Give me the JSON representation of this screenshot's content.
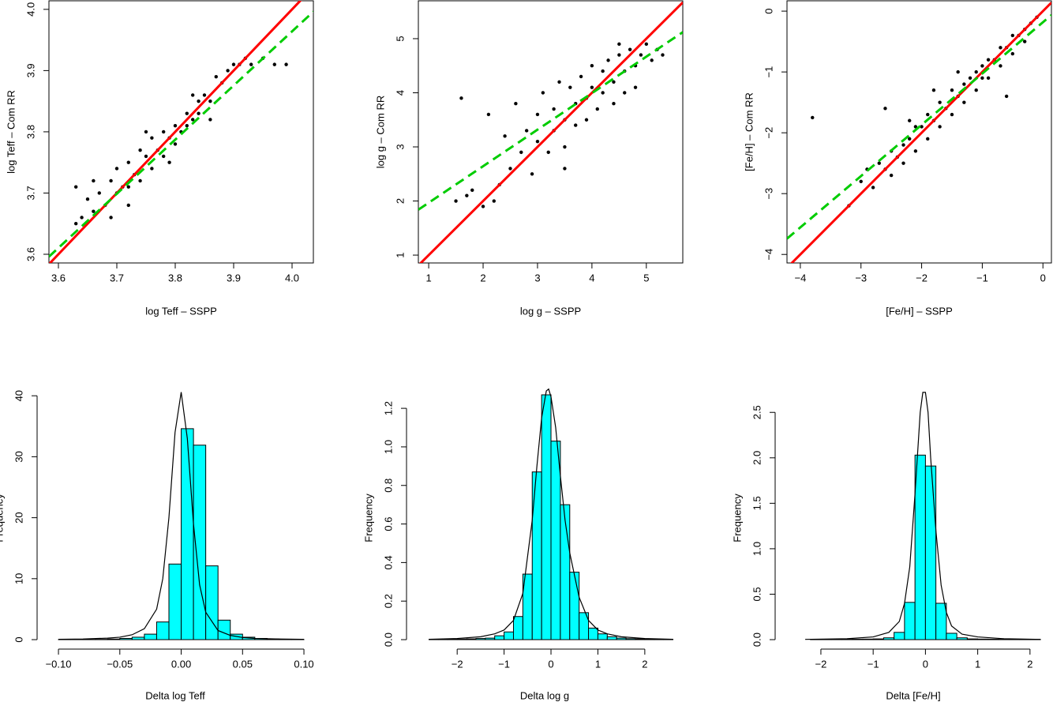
{
  "chart_data": [
    {
      "type": "scatter",
      "xlabel": "log Teff – SSPP",
      "ylabel": "log Teff – Com RR",
      "color": "#000000",
      "x": [
        3.63,
        3.64,
        3.65,
        3.66,
        3.67,
        3.68,
        3.69,
        3.7,
        3.7,
        3.71,
        3.72,
        3.72,
        3.73,
        3.74,
        3.74,
        3.75,
        3.76,
        3.76,
        3.77,
        3.78,
        3.78,
        3.79,
        3.8,
        3.8,
        3.81,
        3.82,
        3.82,
        3.83,
        3.84,
        3.84,
        3.85,
        3.86,
        3.87,
        3.88,
        3.89,
        3.9,
        3.91,
        3.92,
        3.93,
        3.95,
        3.97,
        3.99,
        3.66,
        3.69,
        3.72,
        3.75,
        3.79,
        3.83,
        3.86,
        3.63
      ],
      "values": [
        3.65,
        3.66,
        3.69,
        3.67,
        3.7,
        3.68,
        3.72,
        3.7,
        3.74,
        3.71,
        3.75,
        3.71,
        3.73,
        3.77,
        3.72,
        3.76,
        3.74,
        3.79,
        3.77,
        3.8,
        3.76,
        3.79,
        3.81,
        3.78,
        3.8,
        3.83,
        3.81,
        3.82,
        3.85,
        3.83,
        3.86,
        3.85,
        3.89,
        3.88,
        3.9,
        3.91,
        3.91,
        3.92,
        3.91,
        3.92,
        3.91,
        3.91,
        3.72,
        3.66,
        3.68,
        3.8,
        3.75,
        3.86,
        3.82,
        3.71
      ],
      "lines": [
        {
          "color": "#ff0000",
          "style": "solid",
          "slope": 1,
          "intercept": 0
        },
        {
          "color": "#00cc00",
          "style": "dashed",
          "slope": 0.884,
          "intercept": 0.428
        }
      ],
      "xlim": [
        3.5838,
        4.0365
      ],
      "ylim": [
        3.5858,
        4.014
      ],
      "xticks": [
        3.6,
        3.7,
        3.8,
        3.9,
        {
          "value": 4,
          "label": "4.0"
        }
      ],
      "yticks": [
        3.6,
        3.7,
        3.8,
        3.9,
        {
          "value": 4,
          "label": "4.0"
        }
      ]
    },
    {
      "type": "scatter",
      "xlabel": "log g – SSPP",
      "ylabel": "log g – Com RR",
      "color": "#000000",
      "x": [
        1.5,
        1.6,
        1.8,
        2.0,
        2.1,
        2.3,
        2.4,
        2.5,
        2.6,
        2.7,
        2.8,
        2.9,
        3.0,
        3.0,
        3.1,
        3.2,
        3.3,
        3.3,
        3.4,
        3.5,
        3.5,
        3.6,
        3.7,
        3.7,
        3.8,
        3.9,
        3.9,
        4.0,
        4.0,
        4.1,
        4.2,
        4.2,
        4.3,
        4.4,
        4.4,
        4.5,
        4.6,
        4.6,
        4.7,
        4.8,
        4.8,
        4.9,
        5.0,
        5.1,
        5.2,
        5.3,
        1.7,
        2.2,
        3.5,
        4.5
      ],
      "values": [
        2.0,
        3.9,
        2.2,
        1.9,
        3.6,
        2.3,
        3.2,
        2.6,
        3.8,
        2.9,
        3.3,
        2.5,
        3.6,
        3.1,
        4.0,
        2.9,
        3.7,
        3.3,
        4.2,
        3.5,
        3.0,
        4.1,
        3.8,
        3.4,
        4.3,
        3.9,
        3.5,
        4.5,
        4.1,
        3.7,
        4.4,
        4.0,
        4.6,
        4.2,
        3.8,
        4.7,
        4.4,
        4.0,
        4.8,
        4.5,
        4.1,
        4.7,
        4.9,
        4.6,
        4.8,
        4.7,
        2.1,
        2.0,
        2.6,
        4.9
      ],
      "lines": [
        {
          "color": "#ff0000",
          "style": "solid",
          "slope": 1,
          "intercept": 0
        },
        {
          "color": "#00cc00",
          "style": "dashed",
          "slope": 0.675,
          "intercept": 1.293
        }
      ],
      "xlim": [
        0.81,
        5.67
      ],
      "ylim": [
        0.855,
        5.7
      ],
      "xticks": [
        1,
        2,
        3,
        4,
        5
      ],
      "yticks": [
        1,
        2,
        3,
        4,
        5
      ]
    },
    {
      "type": "scatter",
      "xlabel": "[Fe/H] – SSPP",
      "ylabel": "[Fe/H] – Com RR",
      "color": "#000000",
      "x": [
        -3.8,
        -3.2,
        -3.0,
        -2.9,
        -2.8,
        -2.7,
        -2.6,
        -2.5,
        -2.5,
        -2.4,
        -2.3,
        -2.3,
        -2.2,
        -2.1,
        -2.1,
        -2.0,
        -1.9,
        -1.9,
        -1.8,
        -1.7,
        -1.7,
        -1.6,
        -1.5,
        -1.5,
        -1.4,
        -1.3,
        -1.3,
        -1.2,
        -1.1,
        -1.1,
        -1.0,
        -0.9,
        -0.9,
        -0.8,
        -0.7,
        -0.7,
        -0.6,
        -0.5,
        -0.5,
        -0.4,
        -0.3,
        -0.3,
        -0.2,
        -0.1,
        -2.6,
        -1.8,
        -1.0,
        -0.6,
        -2.2,
        -1.4
      ],
      "values": [
        -1.75,
        -3.2,
        -2.8,
        -2.6,
        -2.9,
        -2.5,
        -2.6,
        -2.3,
        -2.7,
        -2.4,
        -2.2,
        -2.5,
        -2.1,
        -1.9,
        -2.3,
        -1.9,
        -1.7,
        -2.1,
        -1.8,
        -1.5,
        -1.9,
        -1.6,
        -1.3,
        -1.7,
        -1.4,
        -1.2,
        -1.5,
        -1.1,
        -1.0,
        -1.3,
        -0.9,
        -0.8,
        -1.1,
        -0.8,
        -0.6,
        -0.9,
        -0.6,
        -0.4,
        -0.7,
        -0.4,
        -0.3,
        -0.5,
        -0.2,
        -0.1,
        -1.6,
        -1.3,
        -1.1,
        -1.4,
        -1.8,
        -1.0
      ],
      "lines": [
        {
          "color": "#ff0000",
          "style": "solid",
          "slope": 1,
          "intercept": 0
        },
        {
          "color": "#00cc00",
          "style": "dashed",
          "slope": 0.843,
          "intercept": -0.183
        }
      ],
      "xlim": [
        -4.22,
        0.14
      ],
      "ylim": [
        -4.14,
        0.17
      ],
      "xticks": [
        {
          "value": -4,
          "label": "−4"
        },
        {
          "value": -3,
          "label": "−3"
        },
        {
          "value": -2,
          "label": "−2"
        },
        {
          "value": -1,
          "label": "−1"
        },
        0
      ],
      "yticks": [
        {
          "value": -4,
          "label": "−4"
        },
        {
          "value": -3,
          "label": "−3"
        },
        {
          "value": -2,
          "label": "−2"
        },
        {
          "value": -1,
          "label": "−1"
        },
        0
      ]
    },
    {
      "type": "histogram",
      "xlabel": "Delta log Teff",
      "ylabel": "Frequency",
      "color": "#00ffff",
      "bins": [
        -0.1,
        -0.09,
        -0.08,
        -0.07,
        -0.06,
        -0.05,
        -0.04,
        -0.03,
        -0.02,
        -0.01,
        0,
        0.01,
        0.02,
        0.03,
        0.04,
        0.05,
        0.06,
        0.07,
        0.08,
        0.09,
        0.1
      ],
      "values": [
        0.02,
        0.02,
        0.03,
        0.05,
        0.1,
        0.2,
        0.4,
        0.9,
        2.9,
        12.4,
        34.6,
        31.9,
        12.1,
        3.2,
        0.9,
        0.4,
        0.2,
        0.1,
        0.05,
        0.03
      ],
      "curve": {
        "color": "#000000",
        "x": [
          -0.1,
          -0.08,
          -0.06,
          -0.05,
          -0.04,
          -0.03,
          -0.02,
          -0.015,
          -0.01,
          -0.005,
          0,
          0.005,
          0.01,
          0.015,
          0.02,
          0.03,
          0.04,
          0.05,
          0.06,
          0.08,
          0.1
        ],
        "values": [
          0.05,
          0.1,
          0.25,
          0.4,
          0.8,
          1.8,
          5,
          10,
          20,
          34,
          40.6,
          33,
          19,
          9,
          4.5,
          1.5,
          0.7,
          0.35,
          0.2,
          0.1,
          0.05
        ]
      },
      "xlim": [
        -0.1174,
        0.1077
      ],
      "ylim": [
        -1.55,
        41.45
      ],
      "xticks": [
        {
          "value": -0.1,
          "label": "−0.10"
        },
        {
          "value": -0.05,
          "label": "−0.05"
        },
        {
          "value": 0,
          "label": "0.00"
        },
        0.05,
        {
          "value": 0.1,
          "label": "0.10"
        }
      ],
      "yticks": [
        0,
        10,
        20,
        30,
        40
      ]
    },
    {
      "type": "histogram",
      "xlabel": "Delta log g",
      "ylabel": "Frequency",
      "color": "#00ffff",
      "bins": [
        -2.6,
        -2.4,
        -2.2,
        -2.0,
        -1.8,
        -1.6,
        -1.4,
        -1.2,
        -1.0,
        -0.8,
        -0.6,
        -0.4,
        -0.2,
        0,
        0.2,
        0.4,
        0.6,
        0.8,
        1.0,
        1.2,
        1.4,
        1.6,
        1.8,
        2.0,
        2.2,
        2.4,
        2.6
      ],
      "values": [
        0.002,
        0.002,
        0.003,
        0.003,
        0.004,
        0.006,
        0.008,
        0.02,
        0.04,
        0.12,
        0.34,
        0.87,
        1.27,
        1.03,
        0.7,
        0.35,
        0.14,
        0.06,
        0.03,
        0.015,
        0.008,
        0.005,
        0.004,
        0.003,
        0.002,
        0.002
      ],
      "curve": {
        "color": "#000000",
        "x": [
          -2.6,
          -2,
          -1.5,
          -1.2,
          -1,
          -0.8,
          -0.6,
          -0.4,
          -0.3,
          -0.2,
          -0.1,
          -0.05,
          0,
          0.1,
          0.2,
          0.3,
          0.4,
          0.6,
          0.8,
          1,
          1.2,
          1.5,
          2,
          2.6
        ],
        "values": [
          0.002,
          0.006,
          0.015,
          0.03,
          0.05,
          0.1,
          0.24,
          0.62,
          0.9,
          1.15,
          1.29,
          1.3,
          1.26,
          1.1,
          0.85,
          0.62,
          0.45,
          0.22,
          0.1,
          0.05,
          0.03,
          0.015,
          0.006,
          0.002
        ]
      },
      "xlim": [
        -3.08,
        2.81
      ],
      "ylim": [
        -0.049,
        1.311
      ],
      "xticks": [
        {
          "value": -2,
          "label": "−2"
        },
        {
          "value": -1,
          "label": "−1"
        },
        0,
        1,
        2
      ],
      "yticks": [
        {
          "value": 0,
          "label": "0.0"
        },
        0.2,
        0.4,
        0.6,
        0.8,
        {
          "value": 1,
          "label": "1.0"
        },
        1.2
      ]
    },
    {
      "type": "histogram",
      "xlabel": "Delta [Fe/H]",
      "ylabel": "Frequency",
      "color": "#00ffff",
      "bins": [
        -2.2,
        -2.0,
        -1.8,
        -1.6,
        -1.4,
        -1.2,
        -1.0,
        -0.8,
        -0.6,
        -0.4,
        -0.2,
        0,
        0.2,
        0.4,
        0.6,
        0.8,
        1.0,
        1.2,
        1.4,
        1.6,
        1.8,
        2.0,
        2.2
      ],
      "values": [
        0.003,
        0.003,
        0.004,
        0.004,
        0.005,
        0.006,
        0.008,
        0.02,
        0.08,
        0.41,
        2.03,
        1.91,
        0.4,
        0.07,
        0.02,
        0.008,
        0.006,
        0.005,
        0.004,
        0.004,
        0.003,
        0.003
      ],
      "curve": {
        "color": "#000000",
        "x": [
          -2.3,
          -1.5,
          -1,
          -0.7,
          -0.5,
          -0.4,
          -0.3,
          -0.2,
          -0.1,
          -0.05,
          0,
          0.05,
          0.1,
          0.2,
          0.3,
          0.4,
          0.5,
          0.7,
          1,
          1.5,
          2.2
        ],
        "values": [
          0.003,
          0.01,
          0.03,
          0.08,
          0.2,
          0.4,
          0.8,
          1.6,
          2.5,
          2.72,
          2.72,
          2.5,
          2.0,
          1.2,
          0.6,
          0.3,
          0.15,
          0.06,
          0.03,
          0.01,
          0.003
        ]
      },
      "xlim": [
        -2.875,
        2.41
      ],
      "ylim": [
        -0.104,
        2.78
      ],
      "xticks": [
        {
          "value": -2,
          "label": "−2"
        },
        {
          "value": -1,
          "label": "−1"
        },
        0,
        1,
        2
      ],
      "yticks": [
        {
          "value": 0,
          "label": "0.0"
        },
        0.5,
        {
          "value": 1,
          "label": "1.0"
        },
        1.5,
        {
          "value": 2,
          "label": "2.0"
        },
        2.5
      ]
    }
  ]
}
